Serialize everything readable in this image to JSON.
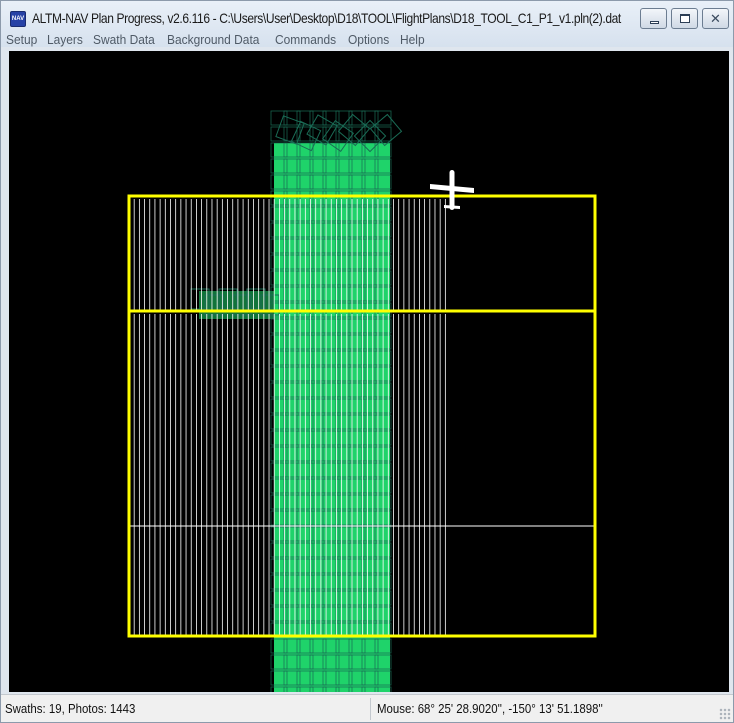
{
  "window": {
    "title": "ALTM-NAV Plan Progress, v2.6.116 - C:\\Users\\User\\Desktop\\D18\\TOOL\\FlightPlans\\D18_TOOL_C1_P1_v1.pln(2).dat",
    "icon_label": "NAV",
    "icon": "nav-app-icon",
    "buttons": [
      "minimize-icon",
      "maximize-icon",
      "close-icon"
    ],
    "close_glyph": "✕"
  },
  "menu": {
    "items": [
      "Setup",
      "Layers",
      "Swath Data",
      "Background Data",
      "Commands",
      "Options",
      "Help"
    ]
  },
  "map": {
    "background_color": "#000000",
    "boundary_color": "#ffff00",
    "flightline_color": "#ffffff",
    "swath_fill_color": "#1fd36a",
    "swath_outline_color": "#1a6b55",
    "aircraft_icon": "airplane-icon"
  },
  "status": {
    "swaths": "Swaths: 19, Photos: 1443",
    "mouse": "Mouse:  68° 25' 28.9020'', -150° 13' 51.1898''"
  }
}
